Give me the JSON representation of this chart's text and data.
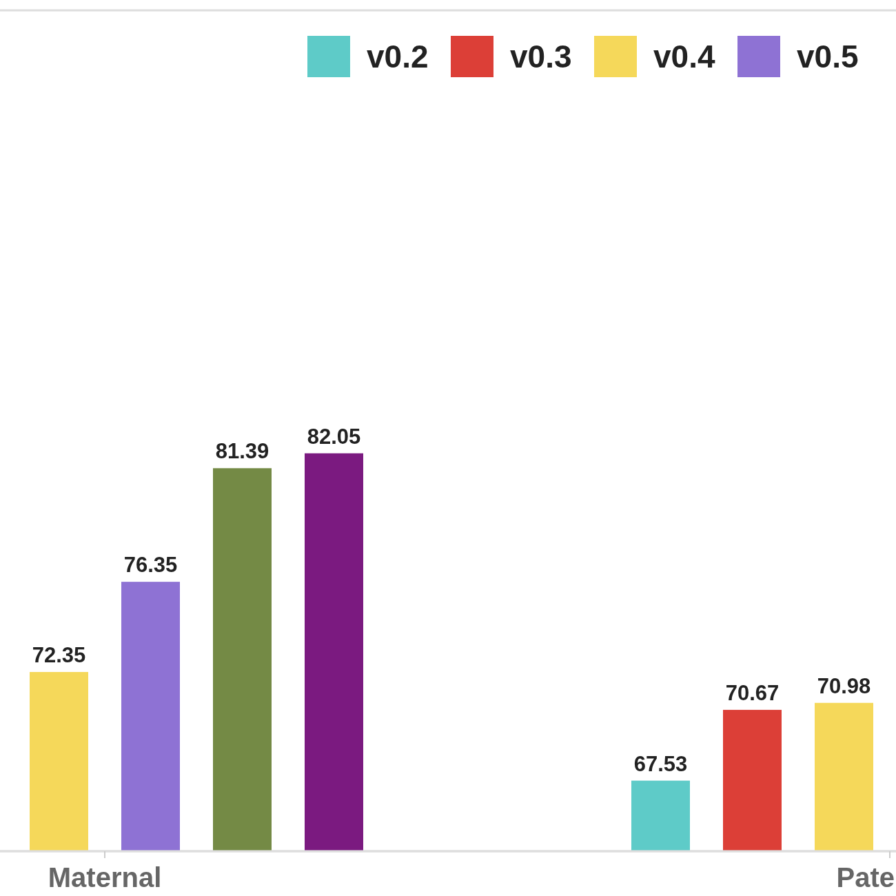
{
  "chart_data": {
    "type": "bar",
    "categories": [
      "Maternal",
      "Pate"
    ],
    "series": [
      {
        "name": "v0.2",
        "color": "#5ecbc8",
        "values": [
          null,
          67.53
        ]
      },
      {
        "name": "v0.3",
        "color": "#dc3f37",
        "values": [
          null,
          70.67
        ]
      },
      {
        "name": "v0.4",
        "color": "#f5d85a",
        "values": [
          72.35,
          70.98
        ]
      },
      {
        "name": "v0.5",
        "color": "#8e72d4",
        "values": [
          76.35,
          null
        ]
      },
      {
        "color": "#748a45",
        "values": [
          81.39,
          null
        ]
      },
      {
        "color": "#7b1a80",
        "values": [
          82.05,
          null
        ]
      }
    ],
    "ylim": [
      64.4,
      101.7
    ],
    "data_labels": true,
    "tick_labels": "x",
    "legend": "top right"
  }
}
